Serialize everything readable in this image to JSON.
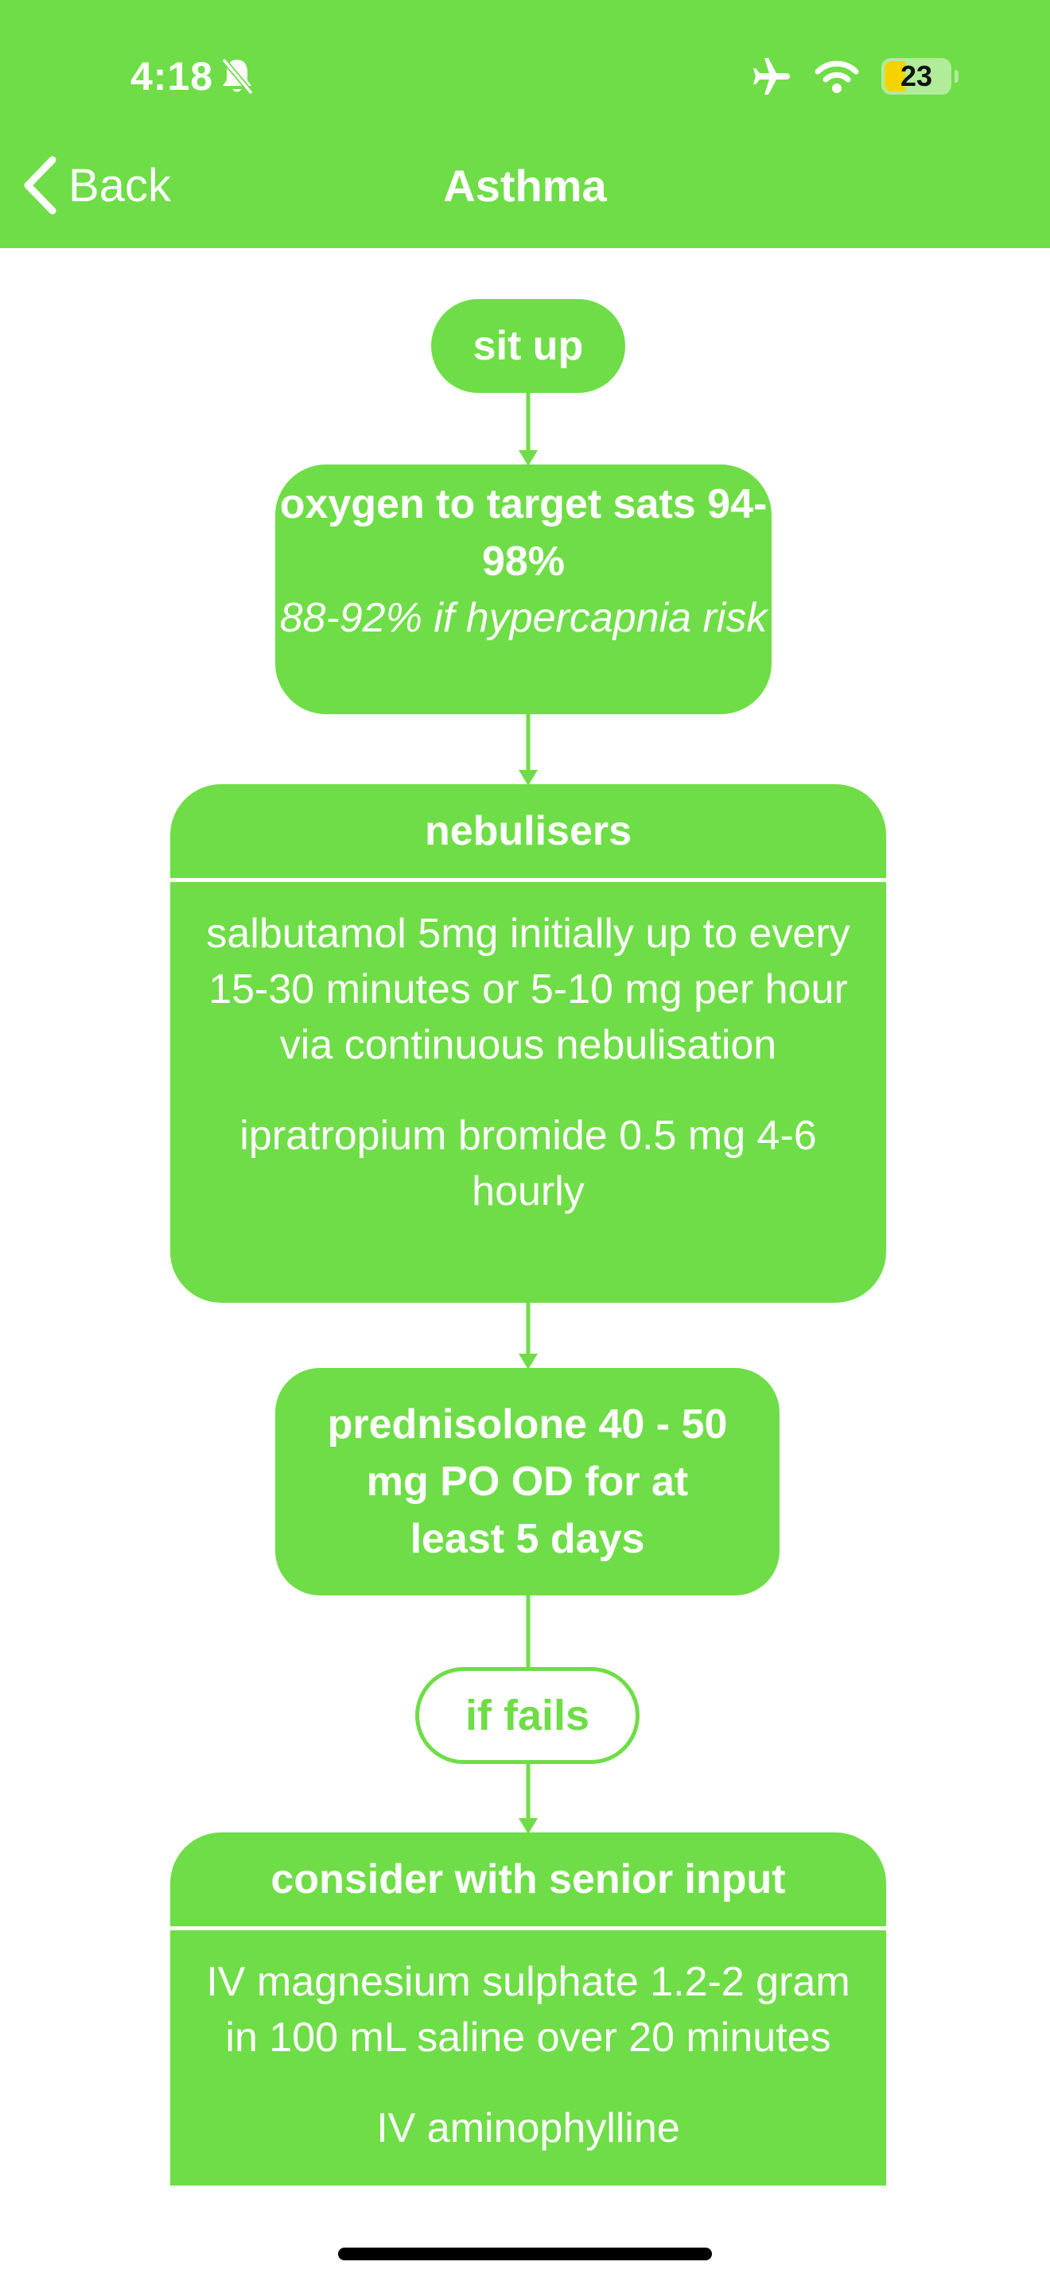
{
  "status_bar": {
    "time": "4:18",
    "battery": "23"
  },
  "nav": {
    "back_label": "Back",
    "title": "Asthma"
  },
  "flow": {
    "step1": "sit up",
    "step2": {
      "title": "oxygen to target sats 94-98%",
      "note": "88-92% if hypercapnia risk"
    },
    "step3": {
      "title": "nebulisers",
      "line1": "salbutamol 5mg initially up to every 15-30 minutes or 5-10 mg per hour via continuous nebulisation",
      "line2": "ipratropium bromide 0.5 mg 4-6 hourly"
    },
    "step4": "prednisolone 40 - 50 mg PO OD for at least 5 days",
    "condition": "if fails",
    "step5": {
      "title": "consider with senior input",
      "line1": "IV magnesium sulphate 1.2-2 gram in 100 mL saline over 20 minutes",
      "line2": "IV aminophylline"
    }
  },
  "colors": {
    "accent": "#6fdd47"
  }
}
